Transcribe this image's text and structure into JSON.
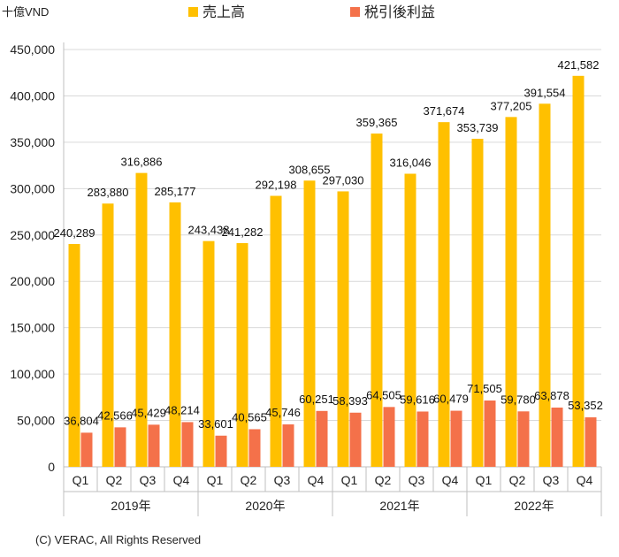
{
  "chart_data": {
    "type": "bar",
    "unit_label": "十億VND",
    "ylim": [
      0,
      450000
    ],
    "y_ticks": [
      0,
      50000,
      100000,
      150000,
      200000,
      250000,
      300000,
      350000,
      400000,
      450000
    ],
    "y_tick_labels": [
      "0",
      "50,000",
      "100,000",
      "150,000",
      "200,000",
      "250,000",
      "300,000",
      "350,000",
      "400,000",
      "450,000"
    ],
    "grid": true,
    "legend_position": "top",
    "years": [
      "2019年",
      "2020年",
      "2021年",
      "2022年"
    ],
    "categories": [
      "Q1",
      "Q2",
      "Q3",
      "Q4",
      "Q1",
      "Q2",
      "Q3",
      "Q4",
      "Q1",
      "Q2",
      "Q3",
      "Q4",
      "Q1",
      "Q2",
      "Q3",
      "Q4"
    ],
    "series": [
      {
        "name": "売上高",
        "color": "#FFC000",
        "values": [
          240289,
          283880,
          316886,
          285177,
          243438,
          241282,
          292198,
          308655,
          297030,
          359365,
          316046,
          371674,
          353739,
          377205,
          391554,
          421582
        ],
        "labels": [
          "240,289",
          "283,880",
          "316,886",
          "285,177",
          "243,438",
          "241,282",
          "292,198",
          "308,655",
          "297,030",
          "359,365",
          "316,046",
          "371,674",
          "353,739",
          "377,205",
          "391,554",
          "421,582"
        ]
      },
      {
        "name": "税引後利益",
        "color": "#F4714A",
        "values": [
          36804,
          42566,
          45429,
          48214,
          33601,
          40565,
          45746,
          60251,
          58393,
          64505,
          59616,
          60479,
          71505,
          59780,
          63878,
          53352
        ],
        "labels": [
          "36,804",
          "42,566",
          "45,429",
          "48,214",
          "33,601",
          "40,565",
          "45,746",
          "60,251",
          "58,393",
          "64,505",
          "59,616",
          "60,479",
          "71,505",
          "59,780",
          "63,878",
          "53,352"
        ]
      }
    ]
  },
  "footer": {
    "copyright": "(C) VERAC, All Rights Reserved"
  }
}
